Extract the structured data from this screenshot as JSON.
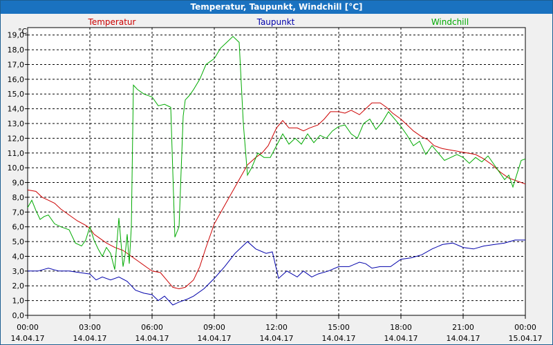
{
  "window": {
    "title": "Temperatur, Taupunkt, Windchill [°C]"
  },
  "colors": {
    "temperatur": "#cc0000",
    "taupunkt": "#0000aa",
    "windchill": "#00aa00",
    "grid": "#000000",
    "plot_bg": "#ffffff",
    "title_bg": "#1a72c0"
  },
  "chart_data": {
    "type": "line",
    "title": "Temperatur, Taupunkt, Windchill [°C]",
    "unit": "°C",
    "xlabel": "",
    "ylabel": "°C",
    "xlim": [
      0,
      24
    ],
    "ylim": [
      0,
      19.5
    ],
    "yticks": [
      0,
      1,
      2,
      3,
      4,
      5,
      6,
      7,
      8,
      9,
      10,
      11,
      12,
      13,
      14,
      15,
      16,
      17,
      18,
      19
    ],
    "ytick_labels": [
      "0,0",
      "1,0",
      "2,0",
      "3,0",
      "4,0",
      "5,0",
      "6,0",
      "7,0",
      "8,0",
      "9,0",
      "10,0",
      "11,0",
      "12,0",
      "13,0",
      "14,0",
      "15,0",
      "16,0",
      "17,0",
      "18,0",
      "19,0"
    ],
    "xticks": [
      0,
      3,
      6,
      9,
      12,
      15,
      18,
      21,
      24
    ],
    "xtick_times": [
      "00:00",
      "03:00",
      "06:00",
      "09:00",
      "12:00",
      "15:00",
      "18:00",
      "21:00",
      "00:00"
    ],
    "xtick_dates": [
      "14.04.17",
      "14.04.17",
      "14.04.17",
      "14.04.17",
      "14.04.17",
      "14.04.17",
      "14.04.17",
      "14.04.17",
      "15.04.17"
    ],
    "grid": true,
    "legend_position": "top",
    "series": [
      {
        "name": "Temperatur",
        "x": [
          0,
          0.4,
          0.7,
          1,
          1.3,
          1.6,
          2,
          2.4,
          2.8,
          3,
          3.2,
          3.5,
          3.8,
          4.2,
          4.6,
          5,
          5.4,
          5.8,
          6,
          6.4,
          6.7,
          7,
          7.3,
          7.6,
          8,
          8.3,
          8.6,
          9,
          9.4,
          9.8,
          10.2,
          10.6,
          11,
          11.3,
          11.6,
          12,
          12.3,
          12.6,
          13,
          13.3,
          13.6,
          14,
          14.3,
          14.6,
          15,
          15.3,
          15.6,
          16,
          16.3,
          16.6,
          17,
          17.3,
          17.6,
          18,
          18.3,
          18.6,
          19,
          19.3,
          19.6,
          20,
          20.4,
          20.8,
          21.2,
          21.6,
          22,
          22.4,
          22.8,
          23.2,
          23.6,
          24
        ],
        "y": [
          8.5,
          8.4,
          8.0,
          7.8,
          7.6,
          7.2,
          6.8,
          6.4,
          6.1,
          5.9,
          5.5,
          5.2,
          4.9,
          4.6,
          4.4,
          4.0,
          3.6,
          3.2,
          3.0,
          2.9,
          2.4,
          1.9,
          1.8,
          1.9,
          2.4,
          3.3,
          4.6,
          6.2,
          7.2,
          8.2,
          9.2,
          10.2,
          10.7,
          11.0,
          11.5,
          12.7,
          13.2,
          12.7,
          12.7,
          12.5,
          12.7,
          12.9,
          13.3,
          13.8,
          13.8,
          13.7,
          13.9,
          13.6,
          14.0,
          14.4,
          14.4,
          14.1,
          13.7,
          13.3,
          12.9,
          12.5,
          12.1,
          11.9,
          11.5,
          11.3,
          11.2,
          11.1,
          11.0,
          10.9,
          10.6,
          10.2,
          9.7,
          9.3,
          9.1,
          8.9
        ]
      },
      {
        "name": "Taupunkt",
        "x": [
          0,
          0.5,
          1,
          1.5,
          2,
          2.5,
          3,
          3.3,
          3.6,
          4,
          4.4,
          4.8,
          5.2,
          5.6,
          6,
          6.3,
          6.6,
          7,
          7.3,
          7.7,
          8,
          8.5,
          9,
          9.5,
          10,
          10.3,
          10.6,
          11,
          11.5,
          11.8,
          12.1,
          12.5,
          13,
          13.3,
          13.7,
          14,
          14.5,
          15,
          15.5,
          16,
          16.3,
          16.6,
          17,
          17.5,
          18,
          18.5,
          19,
          19.5,
          20,
          20.5,
          21,
          21.5,
          22,
          22.5,
          23,
          23.5,
          24
        ],
        "y": [
          3.0,
          3.0,
          3.2,
          3.0,
          3.0,
          2.9,
          2.8,
          2.4,
          2.6,
          2.4,
          2.6,
          2.3,
          1.7,
          1.5,
          1.4,
          1.0,
          1.3,
          0.7,
          0.9,
          1.1,
          1.3,
          1.8,
          2.5,
          3.3,
          4.2,
          4.6,
          5.0,
          4.5,
          4.2,
          4.3,
          2.5,
          3.0,
          2.6,
          3.0,
          2.6,
          2.8,
          3.0,
          3.3,
          3.3,
          3.6,
          3.5,
          3.2,
          3.3,
          3.3,
          3.8,
          3.9,
          4.1,
          4.5,
          4.8,
          4.9,
          4.6,
          4.5,
          4.7,
          4.8,
          4.9,
          5.1,
          5.1
        ]
      },
      {
        "name": "Windchill",
        "x": [
          0,
          0.2,
          0.4,
          0.6,
          0.8,
          1,
          1.3,
          1.6,
          2,
          2.3,
          2.6,
          2.8,
          3,
          3.2,
          3.4,
          3.6,
          3.8,
          4,
          4.2,
          4.4,
          4.6,
          4.7,
          4.8,
          4.9,
          5,
          5.1,
          5.3,
          5.6,
          6,
          6.3,
          6.6,
          6.9,
          7.1,
          7.3,
          7.5,
          7.6,
          7.8,
          8,
          8.3,
          8.6,
          9,
          9.3,
          9.6,
          9.9,
          10.2,
          10.4,
          10.6,
          10.8,
          11.1,
          11.4,
          11.7,
          12,
          12.3,
          12.6,
          12.9,
          13.2,
          13.5,
          13.8,
          14.1,
          14.4,
          14.7,
          15,
          15.3,
          15.6,
          15.9,
          16.2,
          16.5,
          16.8,
          17.1,
          17.4,
          17.7,
          18,
          18.3,
          18.6,
          18.9,
          19.2,
          19.5,
          19.8,
          20.1,
          20.4,
          20.7,
          21,
          21.3,
          21.6,
          21.9,
          22.2,
          22.5,
          22.8,
          23.0,
          23.2,
          23.4,
          23.6,
          23.8,
          24
        ],
        "y": [
          7.3,
          7.8,
          7.1,
          6.5,
          6.7,
          6.8,
          6.2,
          6.0,
          5.8,
          4.9,
          4.7,
          5.1,
          6.0,
          5.1,
          4.5,
          4.0,
          4.6,
          4.2,
          3.1,
          6.6,
          3.3,
          4.1,
          5.5,
          3.5,
          6.0,
          15.6,
          15.3,
          15.0,
          14.8,
          14.2,
          14.3,
          14.1,
          5.3,
          6.0,
          13.5,
          14.6,
          14.9,
          15.3,
          16.0,
          17.0,
          17.4,
          18.1,
          18.5,
          18.9,
          18.5,
          13.0,
          9.5,
          10.0,
          11.0,
          10.7,
          10.7,
          11.5,
          12.3,
          11.6,
          12.0,
          11.6,
          12.3,
          11.7,
          12.2,
          12.0,
          12.5,
          12.8,
          12.9,
          12.3,
          12.0,
          13.0,
          13.3,
          12.6,
          13.1,
          13.8,
          13.3,
          12.8,
          12.2,
          11.5,
          11.8,
          10.9,
          11.5,
          11.0,
          10.5,
          10.7,
          10.9,
          10.7,
          10.3,
          10.7,
          10.4,
          10.8,
          10.2,
          9.6,
          9.2,
          9.5,
          8.7,
          9.6,
          10.5,
          10.6
        ]
      }
    ]
  }
}
